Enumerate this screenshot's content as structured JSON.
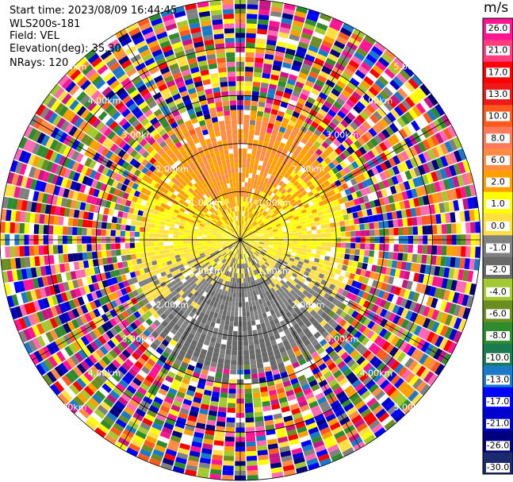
{
  "header": {
    "start_time": "Start time: 2023/08/09 16:44:45",
    "instrument": "WLS200s-181",
    "field": "Field: VEL",
    "elevation": "Elevation(deg): 35.30",
    "nrays": "NRays: 120"
  },
  "chart_data": {
    "type": "heatmap",
    "projection": "polar-ppi",
    "field": "VEL",
    "unit": "m/s",
    "nrays": 120,
    "range_max_km": 5.0,
    "range_rings_km": [
      1.0,
      2.0,
      3.0,
      4.0,
      5.0
    ],
    "range_ring_labels": [
      "1.00km",
      "2.00km",
      "3.00km",
      "4.00km",
      "5.00km"
    ],
    "radials_deg": [
      0,
      30,
      60,
      90,
      120,
      150,
      180,
      210,
      240,
      270,
      300,
      330
    ],
    "coherent_range_km": {
      "upwind": 2.6,
      "downwind": 2.8,
      "crosswind": 2.2
    },
    "pattern": "Near-range cone: positive velocities (about 1-2 m/s, yellow) to the north, negative (about -1 to -6 m/s, greens) to the south, near-zero (gray) along east-west; beyond about 2.5 km noisy values across the full color range.",
    "colorbar": {
      "ticks": [
        26.0,
        21.0,
        17.0,
        13.0,
        10.0,
        8.0,
        6.0,
        2.0,
        1.0,
        0.0,
        -1.0,
        -2.0,
        -4.0,
        -6.0,
        -8.0,
        -10.0,
        -13.0,
        -17.0,
        -21.0,
        -26.0,
        -30.0
      ],
      "tick_labels": [
        "26.0",
        "21.0",
        "17.0",
        "13.0",
        "10.0",
        "8.0",
        "6.0",
        "2.0",
        "1.0",
        "0.0",
        "-1.0",
        "-2.0",
        "-4.0",
        "-6.0",
        "-8.0",
        "-10.0",
        "-13.0",
        "-17.0",
        "-21.0",
        "-26.0",
        "-30.0"
      ],
      "colors": [
        "#ff1493",
        "#ff3c80",
        "#ff0000",
        "#ee1a1a",
        "#ff5a1e",
        "#ff7a5a",
        "#ff8c42",
        "#ffa000",
        "#ffff00",
        "#ffe040",
        "#808080",
        "#696969",
        "#a2c930",
        "#6b8e23",
        "#2e8b2e",
        "#1a7a50",
        "#1a7ac8",
        "#0000ff",
        "#0000cd",
        "#00007f",
        "#1c2a6e"
      ]
    }
  }
}
